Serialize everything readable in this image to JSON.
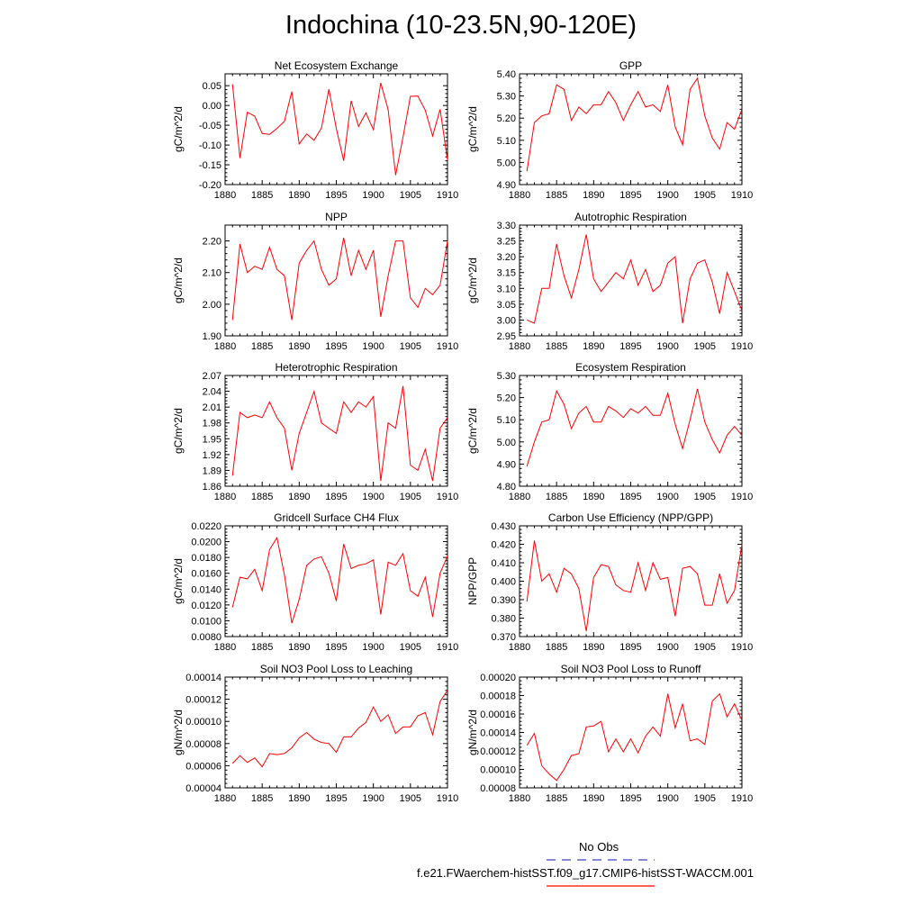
{
  "title": "Indochina (10-23.5N,90-120E)",
  "series_color": "#ff0000",
  "legend": {
    "obs_label": "No Obs",
    "obs_color": "#4040c0",
    "model_label": "f.e21.FWaerchem-histSST.f09_g17.CMIP6-histSST-WACCM.001",
    "model_color": "#ff0000"
  },
  "chart_data": [
    {
      "type": "line",
      "title": "Net Ecosystem Exchange",
      "ylabel": "gC/m^2/d",
      "xlim": [
        1880,
        1910
      ],
      "xticks": [
        1880,
        1885,
        1890,
        1895,
        1900,
        1905,
        1910
      ],
      "ylim": [
        -0.2,
        0.08
      ],
      "yticks": [
        "0.05",
        "0.00",
        "-0.05",
        "-0.10",
        "-0.15",
        "-0.20"
      ],
      "ytick_values": [
        0.05,
        0.0,
        -0.05,
        -0.1,
        -0.15,
        -0.2
      ],
      "x": [
        1881,
        1882,
        1883,
        1884,
        1885,
        1886,
        1887,
        1888,
        1889,
        1890,
        1891,
        1892,
        1893,
        1894,
        1895,
        1896,
        1897,
        1898,
        1899,
        1900,
        1901,
        1902,
        1903,
        1904,
        1905,
        1906,
        1907,
        1908,
        1909,
        1910
      ],
      "values": [
        0.054,
        -0.133,
        -0.017,
        -0.027,
        -0.071,
        -0.073,
        -0.058,
        -0.04,
        0.035,
        -0.097,
        -0.072,
        -0.088,
        -0.057,
        0.041,
        -0.058,
        -0.14,
        0.012,
        -0.053,
        -0.019,
        -0.061,
        0.057,
        -0.011,
        -0.176,
        -0.08,
        0.023,
        0.024,
        -0.012,
        -0.077,
        -0.01,
        -0.138
      ]
    },
    {
      "type": "line",
      "title": "GPP",
      "ylabel": "gC/m^2/d",
      "xlim": [
        1880,
        1910
      ],
      "xticks": [
        1880,
        1885,
        1890,
        1895,
        1900,
        1905,
        1910
      ],
      "ylim": [
        4.9,
        5.4
      ],
      "yticks": [
        "5.40",
        "5.30",
        "5.20",
        "5.10",
        "5.00",
        "4.90"
      ],
      "ytick_values": [
        5.4,
        5.3,
        5.2,
        5.1,
        5.0,
        4.9
      ],
      "x": [
        1881,
        1882,
        1883,
        1884,
        1885,
        1886,
        1887,
        1888,
        1889,
        1890,
        1891,
        1892,
        1893,
        1894,
        1895,
        1896,
        1897,
        1898,
        1899,
        1900,
        1901,
        1902,
        1903,
        1904,
        1905,
        1906,
        1907,
        1908,
        1909,
        1910
      ],
      "values": [
        4.96,
        5.18,
        5.21,
        5.22,
        5.35,
        5.33,
        5.19,
        5.25,
        5.22,
        5.26,
        5.26,
        5.32,
        5.27,
        5.19,
        5.26,
        5.32,
        5.25,
        5.26,
        5.23,
        5.35,
        5.16,
        5.08,
        5.33,
        5.38,
        5.21,
        5.11,
        5.06,
        5.18,
        5.15,
        5.24
      ]
    },
    {
      "type": "line",
      "title": "NPP",
      "ylabel": "gC/m^2/d",
      "xlim": [
        1880,
        1910
      ],
      "xticks": [
        1880,
        1885,
        1890,
        1895,
        1900,
        1905,
        1910
      ],
      "ylim": [
        1.9,
        2.25
      ],
      "yticks": [
        "2.20",
        "2.10",
        "2.00",
        "1.90"
      ],
      "ytick_values": [
        2.2,
        2.1,
        2.0,
        1.9
      ],
      "x": [
        1881,
        1882,
        1883,
        1884,
        1885,
        1886,
        1887,
        1888,
        1889,
        1890,
        1891,
        1892,
        1893,
        1894,
        1895,
        1896,
        1897,
        1898,
        1899,
        1900,
        1901,
        1902,
        1903,
        1904,
        1905,
        1906,
        1907,
        1908,
        1909,
        1910
      ],
      "values": [
        1.95,
        2.19,
        2.1,
        2.12,
        2.11,
        2.18,
        2.11,
        2.09,
        1.95,
        2.13,
        2.17,
        2.2,
        2.11,
        2.06,
        2.08,
        2.21,
        2.09,
        2.17,
        2.11,
        2.17,
        1.96,
        2.09,
        2.2,
        2.2,
        2.02,
        1.99,
        2.05,
        2.03,
        2.06,
        2.2
      ]
    },
    {
      "type": "line",
      "title": "Autotrophic Respiration",
      "ylabel": "gC/m^2/d",
      "xlim": [
        1880,
        1910
      ],
      "xticks": [
        1880,
        1885,
        1890,
        1895,
        1900,
        1905,
        1910
      ],
      "ylim": [
        2.95,
        3.3
      ],
      "yticks": [
        "3.30",
        "3.25",
        "3.20",
        "3.15",
        "3.10",
        "3.05",
        "3.00",
        "2.95"
      ],
      "ytick_values": [
        3.3,
        3.25,
        3.2,
        3.15,
        3.1,
        3.05,
        3.0,
        2.95
      ],
      "x": [
        1881,
        1882,
        1883,
        1884,
        1885,
        1886,
        1887,
        1888,
        1889,
        1890,
        1891,
        1892,
        1893,
        1894,
        1895,
        1896,
        1897,
        1898,
        1899,
        1900,
        1901,
        1902,
        1903,
        1904,
        1905,
        1906,
        1907,
        1908,
        1909,
        1910
      ],
      "values": [
        3.0,
        2.99,
        3.1,
        3.1,
        3.24,
        3.14,
        3.07,
        3.16,
        3.27,
        3.13,
        3.09,
        3.12,
        3.15,
        3.13,
        3.19,
        3.11,
        3.16,
        3.09,
        3.11,
        3.18,
        3.2,
        2.99,
        3.13,
        3.18,
        3.19,
        3.12,
        3.02,
        3.15,
        3.09,
        3.03
      ]
    },
    {
      "type": "line",
      "title": "Heterotrophic Respiration",
      "ylabel": "gC/m^2/d",
      "xlim": [
        1880,
        1910
      ],
      "xticks": [
        1880,
        1885,
        1890,
        1895,
        1900,
        1905,
        1910
      ],
      "ylim": [
        1.86,
        2.07
      ],
      "yticks": [
        "2.07",
        "2.04",
        "2.01",
        "1.98",
        "1.95",
        "1.92",
        "1.89",
        "1.86"
      ],
      "ytick_values": [
        2.07,
        2.04,
        2.01,
        1.98,
        1.95,
        1.92,
        1.89,
        1.86
      ],
      "x": [
        1881,
        1882,
        1883,
        1884,
        1885,
        1886,
        1887,
        1888,
        1889,
        1890,
        1891,
        1892,
        1893,
        1894,
        1895,
        1896,
        1897,
        1898,
        1899,
        1900,
        1901,
        1902,
        1903,
        1904,
        1905,
        1906,
        1907,
        1908,
        1909,
        1910
      ],
      "values": [
        1.88,
        2.0,
        1.99,
        1.995,
        1.99,
        2.02,
        1.99,
        1.97,
        1.89,
        1.96,
        2.0,
        2.04,
        1.98,
        1.97,
        1.96,
        2.02,
        2.0,
        2.02,
        2.01,
        2.03,
        1.87,
        1.98,
        1.97,
        2.05,
        1.9,
        1.89,
        1.93,
        1.87,
        1.97,
        1.99
      ]
    },
    {
      "type": "line",
      "title": "Ecosystem Respiration",
      "ylabel": "gC/m^2/d",
      "xlim": [
        1880,
        1910
      ],
      "xticks": [
        1880,
        1885,
        1890,
        1895,
        1900,
        1905,
        1910
      ],
      "ylim": [
        4.8,
        5.3
      ],
      "yticks": [
        "5.30",
        "5.20",
        "5.10",
        "5.00",
        "4.90",
        "4.80"
      ],
      "ytick_values": [
        5.3,
        5.2,
        5.1,
        5.0,
        4.9,
        4.8
      ],
      "x": [
        1881,
        1882,
        1883,
        1884,
        1885,
        1886,
        1887,
        1888,
        1889,
        1890,
        1891,
        1892,
        1893,
        1894,
        1895,
        1896,
        1897,
        1898,
        1899,
        1900,
        1901,
        1902,
        1903,
        1904,
        1905,
        1906,
        1907,
        1908,
        1909,
        1910
      ],
      "values": [
        4.89,
        5.0,
        5.09,
        5.1,
        5.23,
        5.17,
        5.06,
        5.13,
        5.16,
        5.09,
        5.09,
        5.16,
        5.14,
        5.11,
        5.15,
        5.13,
        5.16,
        5.12,
        5.12,
        5.22,
        5.08,
        4.97,
        5.1,
        5.24,
        5.09,
        5.01,
        4.95,
        5.03,
        5.07,
        5.03
      ]
    },
    {
      "type": "line",
      "title": "Gridcell Surface CH4 Flux",
      "ylabel": "gC/m^2/d",
      "xlim": [
        1880,
        1910
      ],
      "xticks": [
        1880,
        1885,
        1890,
        1895,
        1900,
        1905,
        1910
      ],
      "ylim": [
        0.008,
        0.022
      ],
      "yticks": [
        "0.0220",
        "0.0200",
        "0.0180",
        "0.0160",
        "0.0140",
        "0.0120",
        "0.0100",
        "0.0080"
      ],
      "ytick_values": [
        0.022,
        0.02,
        0.018,
        0.016,
        0.014,
        0.012,
        0.01,
        0.008
      ],
      "x": [
        1881,
        1882,
        1883,
        1884,
        1885,
        1886,
        1887,
        1888,
        1889,
        1890,
        1891,
        1892,
        1893,
        1894,
        1895,
        1896,
        1897,
        1898,
        1899,
        1900,
        1901,
        1902,
        1903,
        1904,
        1905,
        1906,
        1907,
        1908,
        1909,
        1910
      ],
      "values": [
        0.0117,
        0.0155,
        0.0153,
        0.0165,
        0.0138,
        0.019,
        0.0205,
        0.0158,
        0.0097,
        0.0127,
        0.017,
        0.0178,
        0.0181,
        0.016,
        0.0125,
        0.0197,
        0.0166,
        0.017,
        0.0172,
        0.0177,
        0.0108,
        0.0174,
        0.017,
        0.0185,
        0.0138,
        0.0131,
        0.0155,
        0.0105,
        0.016,
        0.0182
      ]
    },
    {
      "type": "line",
      "title": "Carbon Use Efficiency (NPP/GPP)",
      "ylabel": "NPP/GPP",
      "xlim": [
        1880,
        1910
      ],
      "xticks": [
        1880,
        1885,
        1890,
        1895,
        1900,
        1905,
        1910
      ],
      "ylim": [
        0.37,
        0.43
      ],
      "yticks": [
        "0.430",
        "0.420",
        "0.410",
        "0.400",
        "0.390",
        "0.380",
        "0.370"
      ],
      "ytick_values": [
        0.43,
        0.42,
        0.41,
        0.4,
        0.39,
        0.38,
        0.37
      ],
      "x": [
        1881,
        1882,
        1883,
        1884,
        1885,
        1886,
        1887,
        1888,
        1889,
        1890,
        1891,
        1892,
        1893,
        1894,
        1895,
        1896,
        1897,
        1898,
        1899,
        1900,
        1901,
        1902,
        1903,
        1904,
        1905,
        1906,
        1907,
        1908,
        1909,
        1910
      ],
      "values": [
        0.389,
        0.422,
        0.4,
        0.404,
        0.394,
        0.407,
        0.404,
        0.396,
        0.373,
        0.402,
        0.409,
        0.408,
        0.398,
        0.395,
        0.394,
        0.41,
        0.395,
        0.41,
        0.401,
        0.402,
        0.381,
        0.407,
        0.408,
        0.404,
        0.387,
        0.387,
        0.404,
        0.388,
        0.395,
        0.42
      ]
    },
    {
      "type": "line",
      "title": "Soil NO3 Pool Loss to Leaching",
      "ylabel": "gN/m^2/d",
      "xlim": [
        1880,
        1910
      ],
      "xticks": [
        1880,
        1885,
        1890,
        1895,
        1900,
        1905,
        1910
      ],
      "ylim": [
        4e-05,
        0.00014
      ],
      "yticks": [
        "0.00014",
        "0.00012",
        "0.00010",
        "0.00008",
        "0.00006",
        "0.00004"
      ],
      "ytick_values": [
        0.00014,
        0.00012,
        0.0001,
        8e-05,
        6e-05,
        4e-05
      ],
      "x": [
        1881,
        1882,
        1883,
        1884,
        1885,
        1886,
        1887,
        1888,
        1889,
        1890,
        1891,
        1892,
        1893,
        1894,
        1895,
        1896,
        1897,
        1898,
        1899,
        1900,
        1901,
        1902,
        1903,
        1904,
        1905,
        1906,
        1907,
        1908,
        1909,
        1910
      ],
      "values": [
        6.2e-05,
        6.9e-05,
        6.3e-05,
        6.7e-05,
        5.9e-05,
        7.1e-05,
        7e-05,
        7.1e-05,
        7.6e-05,
        8.5e-05,
        9e-05,
        8.4e-05,
        8.1e-05,
        8e-05,
        7.2e-05,
        8.6e-05,
        8.6e-05,
        9.4e-05,
        9.9e-05,
        0.000113,
        0.0001,
        0.000106,
        8.9e-05,
        9.5e-05,
        9.5e-05,
        0.000105,
        0.000108,
        8.8e-05,
        0.000118,
        0.000128
      ]
    },
    {
      "type": "line",
      "title": "Soil NO3 Pool Loss to Runoff",
      "ylabel": "gN/m^2/d",
      "xlim": [
        1880,
        1910
      ],
      "xticks": [
        1880,
        1885,
        1890,
        1895,
        1900,
        1905,
        1910
      ],
      "ylim": [
        8e-05,
        0.0002
      ],
      "yticks": [
        "0.00020",
        "0.00018",
        "0.00016",
        "0.00014",
        "0.00012",
        "0.00010",
        "0.00008"
      ],
      "ytick_values": [
        0.0002,
        0.00018,
        0.00016,
        0.00014,
        0.00012,
        0.0001,
        8e-05
      ],
      "x": [
        1881,
        1882,
        1883,
        1884,
        1885,
        1886,
        1887,
        1888,
        1889,
        1890,
        1891,
        1892,
        1893,
        1894,
        1895,
        1896,
        1897,
        1898,
        1899,
        1900,
        1901,
        1902,
        1903,
        1904,
        1905,
        1906,
        1907,
        1908,
        1909,
        1910
      ],
      "values": [
        0.000126,
        0.000139,
        0.000104,
        9.5e-05,
        8.8e-05,
        0.0001,
        0.000115,
        0.000117,
        0.000146,
        0.000147,
        0.000152,
        0.000119,
        0.000133,
        0.000119,
        0.000133,
        0.000118,
        0.000136,
        0.000146,
        0.000136,
        0.000182,
        0.000145,
        0.000171,
        0.000131,
        0.000133,
        0.000127,
        0.000174,
        0.000182,
        0.000157,
        0.000171,
        0.000153
      ]
    }
  ]
}
